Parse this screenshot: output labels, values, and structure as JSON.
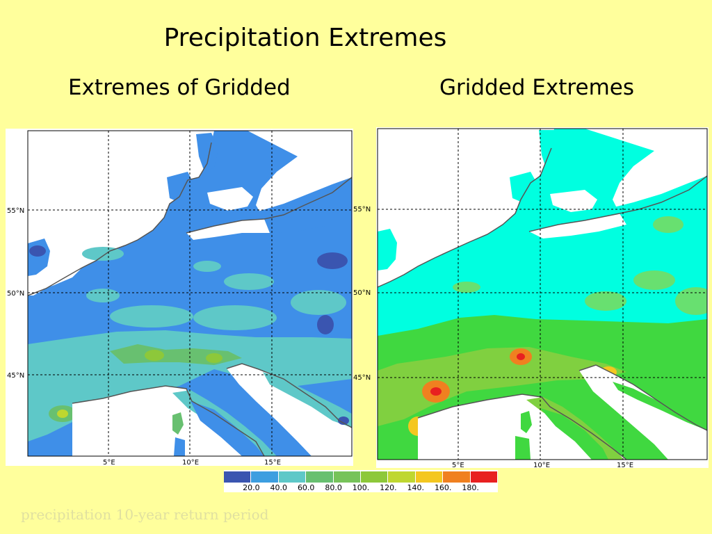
{
  "slide": {
    "title": "Precipitation Extremes",
    "left_caption": "Extremes of Gridded",
    "right_caption": "Gridded Extremes",
    "footer": "precipitation 10-year return period"
  },
  "map_axes": {
    "lat_labels": [
      "55°N",
      "50°N",
      "45°N"
    ],
    "lon_labels": [
      "5°E",
      "10°E",
      "15°E"
    ]
  },
  "legend": {
    "colors": [
      "#3a55b0",
      "#3d9ee0",
      "#5ec8c8",
      "#68c070",
      "#77c35a",
      "#8dc83a",
      "#bfd730",
      "#f4c720",
      "#f08020",
      "#e82020"
    ],
    "labels": [
      "20.0",
      "40.0",
      "60.0",
      "80.0",
      "100.",
      "120.",
      "140.",
      "160.",
      "180."
    ]
  },
  "colors": {
    "background": "#ffff9c",
    "land_left": "#3f8fe8",
    "land_right": "#00ffe0",
    "sea": "#ffffff",
    "coast": "#555555"
  }
}
